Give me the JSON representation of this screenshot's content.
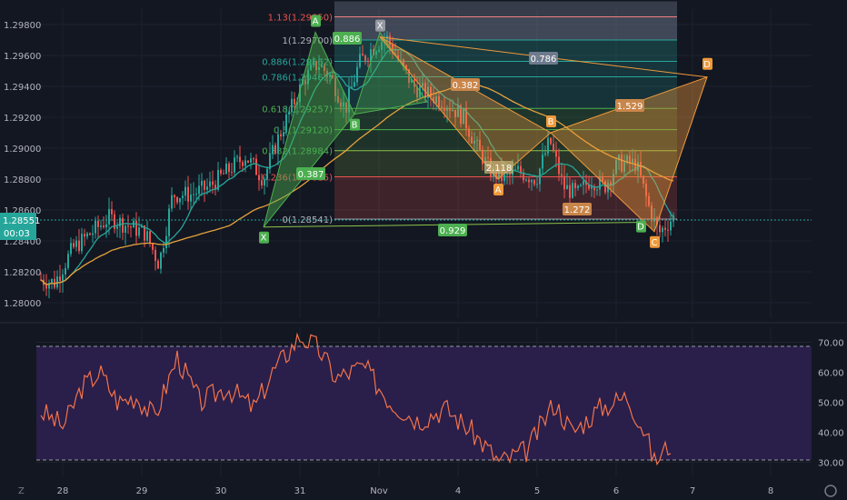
{
  "theme": {
    "background": "#131722",
    "grid": "#1e2230",
    "candle_up": "#26a69a",
    "candle_down": "#ef5350",
    "ma_fast": "#26a69a",
    "ma_slow": "#e6a23c",
    "rsi_line": "#f2734a",
    "rsi_band": "#2a1e4a",
    "pattern_green": "#4caf50",
    "pattern_orange": "#f0993a",
    "price_tag": "#26a69a"
  },
  "price_panel": {
    "y_ticks": [
      "1.29800",
      "1.29600",
      "1.29400",
      "1.29200",
      "1.29000",
      "1.28800",
      "1.28600",
      "1.28400",
      "1.28200",
      "1.28000"
    ],
    "current_price": "1.28551",
    "countdown": "00:03"
  },
  "rsi_panel": {
    "y_ticks": [
      "70.00",
      "60.00",
      "50.00",
      "40.00",
      "30.00"
    ]
  },
  "x_axis": {
    "labels": [
      "28",
      "29",
      "30",
      "31",
      "Nov",
      "4",
      "5",
      "6",
      "7",
      "8"
    ]
  },
  "fib_levels": [
    {
      "label": "1.13(1.29850)",
      "color": "#ef5350"
    },
    {
      "label": "1(1.29700)",
      "color": "#b2b5be"
    },
    {
      "label": "0.886(1.29562)",
      "color": "#26a69a"
    },
    {
      "label": "0.786(1.29462)",
      "color": "#26a69a"
    },
    {
      "label": "0.618(1.29257)",
      "color": "#4caf50"
    },
    {
      "label": "0.5(1.29120)",
      "color": "#4caf50"
    },
    {
      "label": "0.382(1.28984)",
      "color": "#4caf50"
    },
    {
      "label": "0.236(1.28815)",
      "color": "#ef5350"
    },
    {
      "label": "0(1.28541)",
      "color": "#b2b5be"
    }
  ],
  "pattern_points": {
    "X1": "X",
    "A1": "A",
    "B1": "B",
    "X2": "X",
    "A2": "A",
    "B2": "B",
    "C": "C",
    "D1": "D",
    "D2": "D"
  },
  "ratios": {
    "r_0886": "0.886",
    "r_0786": "0.786",
    "r_0382": "0.382",
    "r_1529": "1.529",
    "r_0387": "0.387",
    "r_2118": "2.118",
    "r_1272": "1.272",
    "r_0929": "0.929"
  },
  "chart_data": {
    "type": "line",
    "series": [
      {
        "values": [
          0
        ]
      },
      {
        "values": [
          0
        ]
      }
    ],
    "price_series": {
      "x_days": [
        "28",
        "29",
        "30",
        "31",
        "Nov",
        "4",
        "5",
        "6",
        "7",
        "8"
      ],
      "price_range": [
        1.279,
        1.299
      ],
      "sample_closes": [
        1.282,
        1.2825,
        1.285,
        1.2835,
        1.287,
        1.2865,
        1.2855,
        1.2845,
        1.286,
        1.288,
        1.287,
        1.286,
        1.288,
        1.29,
        1.2895,
        1.287,
        1.286,
        1.288,
        1.292,
        1.295,
        1.294,
        1.296,
        1.2975,
        1.295,
        1.2935,
        1.292,
        1.29,
        1.288,
        1.287,
        1.286,
        1.288,
        1.29,
        1.2885,
        1.287,
        1.286,
        1.2875,
        1.288,
        1.287,
        1.284,
        1.2855
      ]
    },
    "rsi": {
      "range": [
        25,
        75
      ],
      "bands": [
        30,
        70
      ],
      "sample_values": [
        48,
        42,
        50,
        55,
        45,
        52,
        58,
        47,
        53,
        60,
        50,
        48,
        55,
        62,
        58,
        50,
        45,
        52,
        66,
        70,
        68,
        62,
        58,
        55,
        48,
        45,
        50,
        42,
        35,
        30,
        34,
        40,
        38,
        45,
        52,
        48,
        50,
        45,
        30,
        37
      ]
    }
  }
}
